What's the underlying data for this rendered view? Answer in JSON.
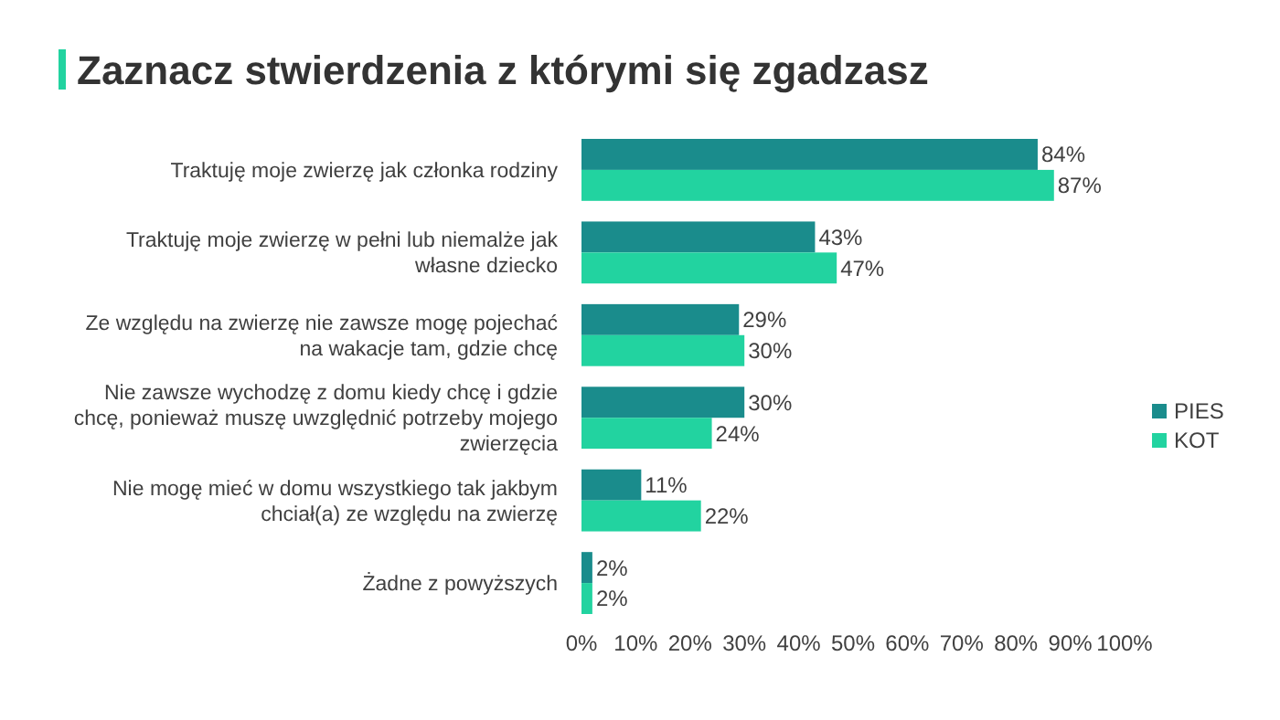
{
  "chart_data": {
    "type": "bar",
    "orientation": "horizontal",
    "title": "Zaznacz stwierdzenia z którymi się zgadzasz",
    "categories": [
      "Traktuję moje zwierzę jak członka rodziny",
      "Traktuję moje zwierzę w pełni lub niemalże jak\nwłasne dziecko",
      "Ze względu na zwierzę nie zawsze mogę pojechać\nna wakacje tam, gdzie chcę",
      "Nie zawsze wychodzę z domu kiedy chcę i gdzie\nchcę, ponieważ muszę uwzględnić potrzeby mojego\nzwierzęcia",
      "Nie mogę mieć w domu wszystkiego tak jakbym\nchciał(a) ze względu na zwierzę",
      "Żadne z powyższych"
    ],
    "series": [
      {
        "name": "PIES",
        "color": "#1a8c8c",
        "values": [
          84,
          43,
          29,
          30,
          11,
          2
        ],
        "value_labels": [
          "84%",
          "43%",
          "29%",
          "30%",
          "11%",
          "2%"
        ]
      },
      {
        "name": "KOT",
        "color": "#22d3a0",
        "values": [
          87,
          47,
          30,
          24,
          22,
          2
        ],
        "value_labels": [
          "87%",
          "47%",
          "30%",
          "24%",
          "22%",
          "2%"
        ]
      }
    ],
    "xlim": [
      0,
      100
    ],
    "xticks": [
      {
        "value": 0,
        "label": "0%"
      },
      {
        "value": 10,
        "label": "10%"
      },
      {
        "value": 20,
        "label": "20%"
      },
      {
        "value": 30,
        "label": "30%"
      },
      {
        "value": 40,
        "label": "40%"
      },
      {
        "value": 50,
        "label": "50%"
      },
      {
        "value": 60,
        "label": "60%"
      },
      {
        "value": 70,
        "label": "70%"
      },
      {
        "value": 80,
        "label": "80%"
      },
      {
        "value": 90,
        "label": "90%"
      },
      {
        "value": 100,
        "label": "100%"
      }
    ],
    "legend": "right"
  }
}
